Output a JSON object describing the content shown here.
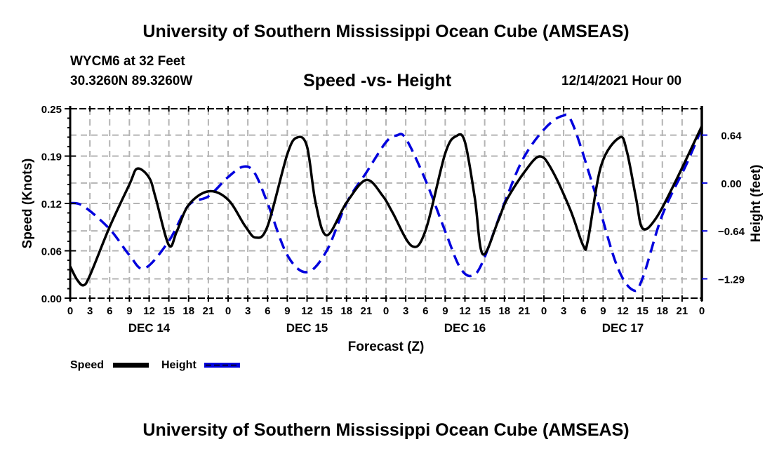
{
  "header": {
    "top_title": "University of Southern Mississippi Ocean Cube (AMSEAS)",
    "station": "WYCM6 at 32 Feet",
    "coordinates": "30.3260N  89.3260W",
    "subtitle": "Speed -vs- Height",
    "date": "12/14/2021 Hour 00",
    "bottom_title": "University of Southern Mississippi Ocean Cube (AMSEAS)"
  },
  "chart_data": {
    "type": "line",
    "title": "Speed -vs- Height",
    "xlabel": "Forecast (Z)",
    "ylabel": "Speed (Knots)",
    "y2label": "Height (feet)",
    "xlim": [
      0,
      96
    ],
    "ylim": [
      0,
      0.25
    ],
    "y2lim": [
      -1.55,
      1.0
    ],
    "grid": true,
    "x_tick_labels": [
      "0",
      "3",
      "6",
      "9",
      "12",
      "15",
      "18",
      "21",
      "0",
      "3",
      "6",
      "9",
      "12",
      "15",
      "18",
      "21",
      "0",
      "3",
      "6",
      "9",
      "12",
      "15",
      "18",
      "21",
      "0",
      "3",
      "6",
      "9",
      "12",
      "15",
      "18",
      "21",
      "0"
    ],
    "day_labels": [
      {
        "label": "DEC 14",
        "hour": 12
      },
      {
        "label": "DEC 15",
        "hour": 36
      },
      {
        "label": "DEC 16",
        "hour": 60
      },
      {
        "label": "DEC 17",
        "hour": 84
      }
    ],
    "y_ticks": [
      {
        "value": 0.25,
        "label": "0.25"
      },
      {
        "value": 0.1875,
        "label": "0.19"
      },
      {
        "value": 0.125,
        "label": "0.12"
      },
      {
        "value": 0.0625,
        "label": "0.06"
      },
      {
        "value": 0.0,
        "label": "0.00"
      }
    ],
    "y2_ticks": [
      {
        "value": 0.645,
        "label": "0.64"
      },
      {
        "value": 0.0,
        "label": "0.00"
      },
      {
        "value": -0.645,
        "label": "−0.64"
      },
      {
        "value": -1.29,
        "label": "−1.29"
      }
    ],
    "legend": {
      "placement": "bottom-left",
      "entries": [
        {
          "name": "Speed",
          "color": "#000000",
          "style": "solid"
        },
        {
          "name": "Height",
          "color": "#0000dd",
          "style": "dashed"
        }
      ]
    },
    "series": [
      {
        "name": "Speed",
        "axis": "left",
        "color": "#000000",
        "style": "solid",
        "x": [
          0,
          1,
          2,
          3,
          6,
          9,
          10.2,
          12,
          13,
          15,
          16.2,
          18,
          21,
          24,
          26.6,
          28.2,
          30,
          33,
          34.5,
          36,
          37.3,
          39,
          42,
          45,
          47.5,
          49,
          51.9,
          54,
          57,
          58.7,
          60,
          61.5,
          62.7,
          65,
          66.3,
          69,
          71.3,
          73.1,
          76,
          78,
          78.7,
          80.7,
          83.5,
          84.6,
          86,
          87,
          89,
          92,
          96
        ],
        "values": [
          0.042,
          0.025,
          0.017,
          0.03,
          0.094,
          0.15,
          0.171,
          0.159,
          0.132,
          0.07,
          0.088,
          0.123,
          0.141,
          0.13,
          0.095,
          0.08,
          0.095,
          0.19,
          0.212,
          0.2,
          0.126,
          0.083,
          0.126,
          0.156,
          0.135,
          0.113,
          0.069,
          0.089,
          0.191,
          0.214,
          0.206,
          0.132,
          0.058,
          0.101,
          0.129,
          0.166,
          0.187,
          0.171,
          0.117,
          0.069,
          0.077,
          0.175,
          0.212,
          0.194,
          0.132,
          0.092,
          0.105,
          0.154,
          0.227
        ]
      },
      {
        "name": "Height",
        "axis": "right",
        "color": "#0000dd",
        "style": "dashed",
        "x": [
          0,
          2,
          6,
          9,
          11.3,
          15,
          18,
          21,
          24,
          26.3,
          28,
          30,
          33,
          36,
          39,
          42,
          45,
          48,
          49.6,
          51,
          54,
          57,
          59.2,
          61,
          62.7,
          66,
          68.8,
          72,
          74.7,
          76.3,
          79.5,
          83,
          85.5,
          87,
          90,
          93.7,
          96
        ],
        "values": [
          -0.27,
          -0.31,
          -0.62,
          -0.97,
          -1.15,
          -0.78,
          -0.3,
          -0.18,
          0.08,
          0.22,
          0.14,
          -0.27,
          -0.97,
          -1.2,
          -0.91,
          -0.27,
          0.14,
          0.55,
          0.64,
          0.6,
          0.04,
          -0.65,
          -1.13,
          -1.25,
          -1.06,
          -0.27,
          0.32,
          0.72,
          0.9,
          0.81,
          -0.05,
          -1.09,
          -1.44,
          -1.28,
          -0.43,
          0.26,
          0.74
        ]
      }
    ]
  }
}
